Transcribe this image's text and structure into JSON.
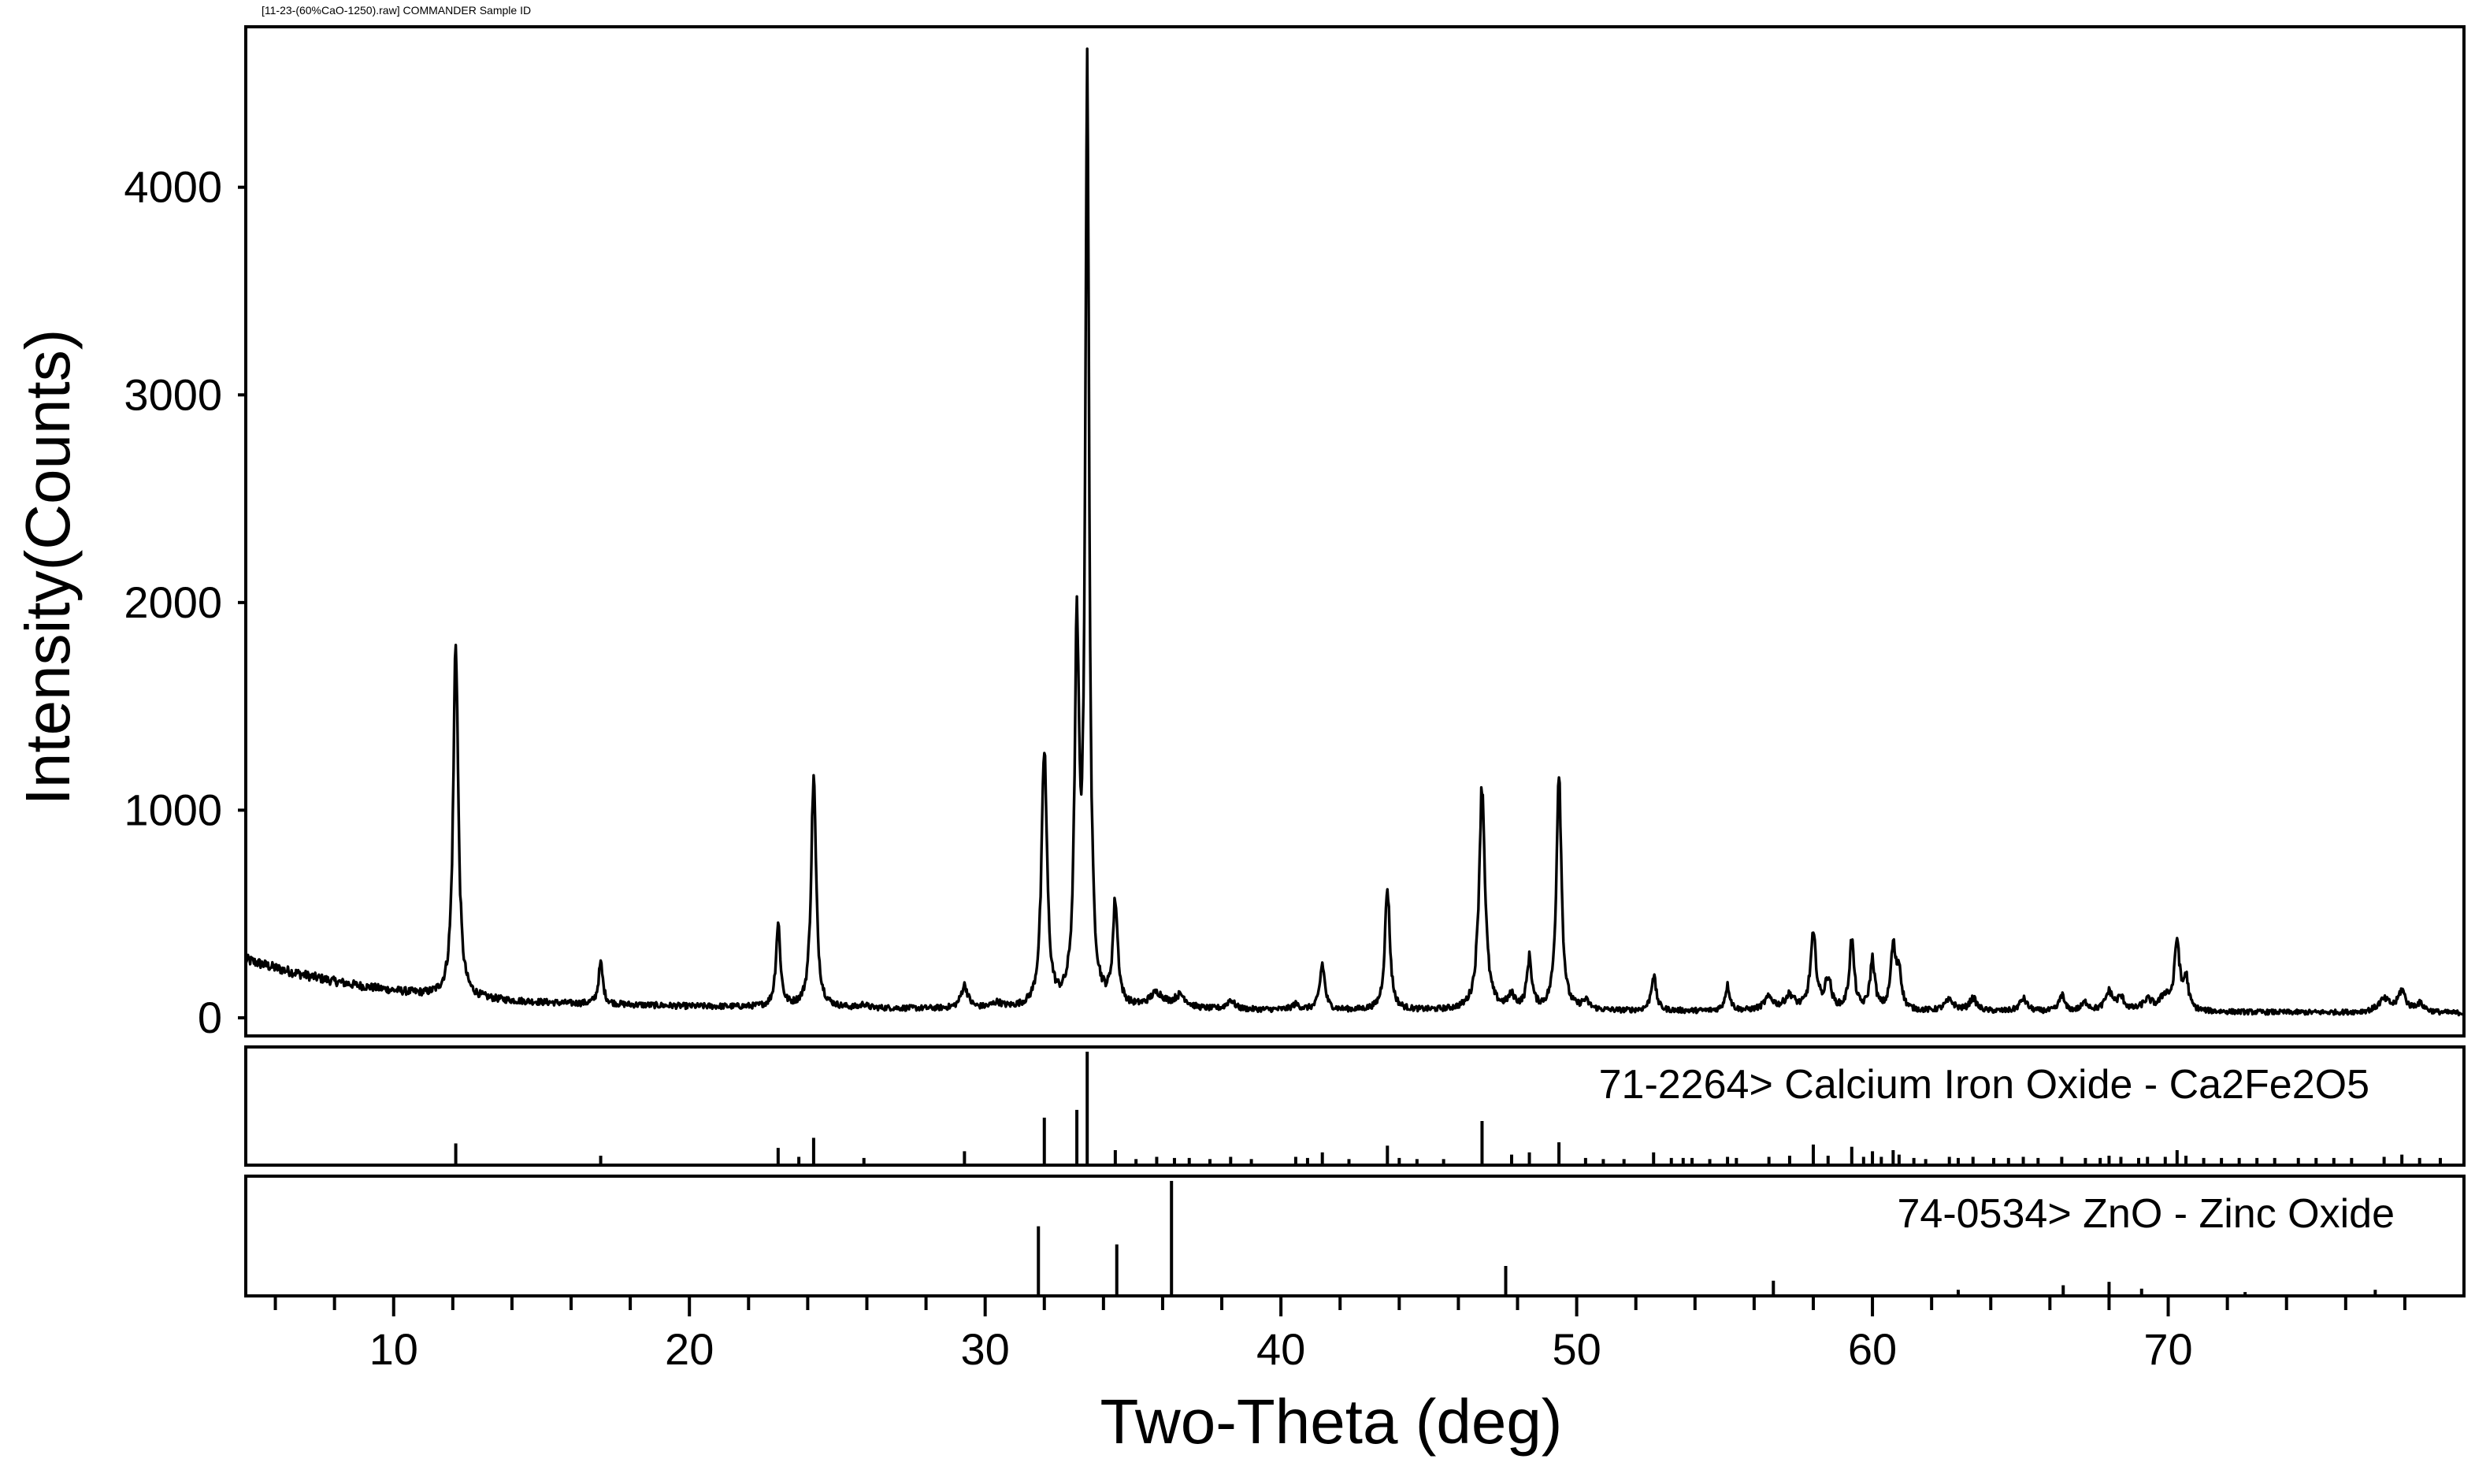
{
  "scan_label": "[11-23-(60%CaO-1250).raw] COMMANDER Sample ID",
  "chart_data": {
    "type": "line",
    "title": "",
    "xlabel": "Two-Theta (deg)",
    "ylabel": "Intensity(Counts)",
    "xlim": [
      5,
      80
    ],
    "ylim": [
      0,
      4750
    ],
    "x_ticks_major": [
      10,
      20,
      30,
      40,
      50,
      60,
      70
    ],
    "x_ticks_minor_step": 2,
    "y_ticks": [
      0,
      1000,
      2000,
      3000,
      4000
    ],
    "grid": false,
    "background": {
      "points": [
        [
          5,
          280
        ],
        [
          6,
          240
        ],
        [
          7,
          205
        ],
        [
          8,
          175
        ],
        [
          9,
          150
        ],
        [
          10,
          130
        ],
        [
          11,
          112
        ],
        [
          12,
          98
        ],
        [
          14,
          80
        ],
        [
          16,
          68
        ],
        [
          20,
          55
        ],
        [
          25,
          46
        ],
        [
          30,
          40
        ],
        [
          35,
          38
        ],
        [
          40,
          36
        ],
        [
          50,
          32
        ],
        [
          60,
          30
        ],
        [
          70,
          28
        ],
        [
          75,
          25
        ],
        [
          80,
          22
        ]
      ]
    },
    "series": [
      {
        "peaks": [
          [
            12.1,
            1720,
            0.1
          ],
          [
            17.0,
            195,
            0.09
          ],
          [
            23.0,
            400,
            0.09
          ],
          [
            24.2,
            1110,
            0.1
          ],
          [
            25.9,
            18,
            0.1
          ],
          [
            29.3,
            110,
            0.14
          ],
          [
            30.4,
            25,
            0.2
          ],
          [
            32.0,
            1230,
            0.11
          ],
          [
            33.1,
            1700,
            0.09
          ],
          [
            33.45,
            4430,
            0.08
          ],
          [
            34.4,
            490,
            0.1
          ],
          [
            35.8,
            70,
            0.3
          ],
          [
            36.6,
            60,
            0.25
          ],
          [
            38.3,
            45,
            0.15
          ],
          [
            40.5,
            25,
            0.15
          ],
          [
            41.4,
            220,
            0.1
          ],
          [
            43.6,
            590,
            0.1
          ],
          [
            46.8,
            1080,
            0.12
          ],
          [
            47.8,
            60,
            0.15
          ],
          [
            48.4,
            240,
            0.1
          ],
          [
            49.4,
            1160,
            0.1
          ],
          [
            50.3,
            40,
            0.15
          ],
          [
            52.6,
            170,
            0.1
          ],
          [
            55.1,
            120,
            0.1
          ],
          [
            56.5,
            60,
            0.2
          ],
          [
            57.2,
            70,
            0.2
          ],
          [
            58.0,
            350,
            0.12
          ],
          [
            58.5,
            150,
            0.12
          ],
          [
            59.3,
            330,
            0.1
          ],
          [
            60.0,
            240,
            0.1
          ],
          [
            60.7,
            290,
            0.1
          ],
          [
            60.9,
            180,
            0.1
          ],
          [
            62.6,
            50,
            0.2
          ],
          [
            63.4,
            60,
            0.15
          ],
          [
            65.1,
            60,
            0.15
          ],
          [
            66.4,
            80,
            0.1
          ],
          [
            67.2,
            40,
            0.15
          ],
          [
            68.0,
            90,
            0.15
          ],
          [
            68.4,
            60,
            0.15
          ],
          [
            69.3,
            50,
            0.2
          ],
          [
            69.9,
            70,
            0.2
          ],
          [
            70.3,
            330,
            0.1
          ],
          [
            70.6,
            150,
            0.1
          ],
          [
            77.3,
            60,
            0.25
          ],
          [
            77.9,
            100,
            0.15
          ],
          [
            78.5,
            40,
            0.2
          ]
        ]
      }
    ]
  },
  "references": [
    {
      "label": "71-2264> Calcium Iron Oxide - Ca2Fe2O5",
      "sticks": [
        [
          12.1,
          0.18
        ],
        [
          17.0,
          0.07
        ],
        [
          23.0,
          0.14
        ],
        [
          23.7,
          0.06
        ],
        [
          24.2,
          0.23
        ],
        [
          25.9,
          0.05
        ],
        [
          29.3,
          0.11
        ],
        [
          32.0,
          0.41
        ],
        [
          33.1,
          0.48
        ],
        [
          33.45,
          1.0
        ],
        [
          34.4,
          0.12
        ],
        [
          35.1,
          0.04
        ],
        [
          35.8,
          0.06
        ],
        [
          36.4,
          0.05
        ],
        [
          36.9,
          0.05
        ],
        [
          37.6,
          0.04
        ],
        [
          38.3,
          0.06
        ],
        [
          39.0,
          0.04
        ],
        [
          40.5,
          0.06
        ],
        [
          40.9,
          0.05
        ],
        [
          41.4,
          0.1
        ],
        [
          42.3,
          0.04
        ],
        [
          43.6,
          0.16
        ],
        [
          44.0,
          0.05
        ],
        [
          44.6,
          0.04
        ],
        [
          45.5,
          0.04
        ],
        [
          46.8,
          0.38
        ],
        [
          47.8,
          0.08
        ],
        [
          48.4,
          0.1
        ],
        [
          49.4,
          0.19
        ],
        [
          50.3,
          0.05
        ],
        [
          50.9,
          0.04
        ],
        [
          51.6,
          0.04
        ],
        [
          52.6,
          0.1
        ],
        [
          53.2,
          0.05
        ],
        [
          53.6,
          0.05
        ],
        [
          53.9,
          0.05
        ],
        [
          54.5,
          0.04
        ],
        [
          55.1,
          0.06
        ],
        [
          55.4,
          0.05
        ],
        [
          56.5,
          0.06
        ],
        [
          57.2,
          0.07
        ],
        [
          58.0,
          0.17
        ],
        [
          58.5,
          0.07
        ],
        [
          59.3,
          0.15
        ],
        [
          59.7,
          0.06
        ],
        [
          60.0,
          0.11
        ],
        [
          60.3,
          0.06
        ],
        [
          60.7,
          0.12
        ],
        [
          60.9,
          0.08
        ],
        [
          61.4,
          0.05
        ],
        [
          61.8,
          0.04
        ],
        [
          62.6,
          0.06
        ],
        [
          62.9,
          0.05
        ],
        [
          63.4,
          0.06
        ],
        [
          64.1,
          0.05
        ],
        [
          64.6,
          0.05
        ],
        [
          65.1,
          0.06
        ],
        [
          65.6,
          0.05
        ],
        [
          66.4,
          0.06
        ],
        [
          67.2,
          0.05
        ],
        [
          67.7,
          0.05
        ],
        [
          68.0,
          0.07
        ],
        [
          68.4,
          0.06
        ],
        [
          69.0,
          0.05
        ],
        [
          69.3,
          0.06
        ],
        [
          69.9,
          0.06
        ],
        [
          70.3,
          0.12
        ],
        [
          70.6,
          0.07
        ],
        [
          71.2,
          0.05
        ],
        [
          71.8,
          0.05
        ],
        [
          72.4,
          0.05
        ],
        [
          73.0,
          0.05
        ],
        [
          73.6,
          0.05
        ],
        [
          74.4,
          0.05
        ],
        [
          75.0,
          0.05
        ],
        [
          75.6,
          0.05
        ],
        [
          76.2,
          0.05
        ],
        [
          77.3,
          0.06
        ],
        [
          77.9,
          0.08
        ],
        [
          78.5,
          0.05
        ],
        [
          79.2,
          0.05
        ]
      ]
    },
    {
      "label": "74-0534> ZnO - Zinc Oxide",
      "sticks": [
        [
          31.8,
          0.6
        ],
        [
          34.45,
          0.44
        ],
        [
          36.3,
          1.0
        ],
        [
          47.6,
          0.25
        ],
        [
          56.65,
          0.12
        ],
        [
          62.9,
          0.04
        ],
        [
          66.45,
          0.08
        ],
        [
          68.0,
          0.11
        ],
        [
          69.1,
          0.05
        ],
        [
          72.6,
          0.02
        ],
        [
          77.0,
          0.04
        ]
      ]
    }
  ]
}
